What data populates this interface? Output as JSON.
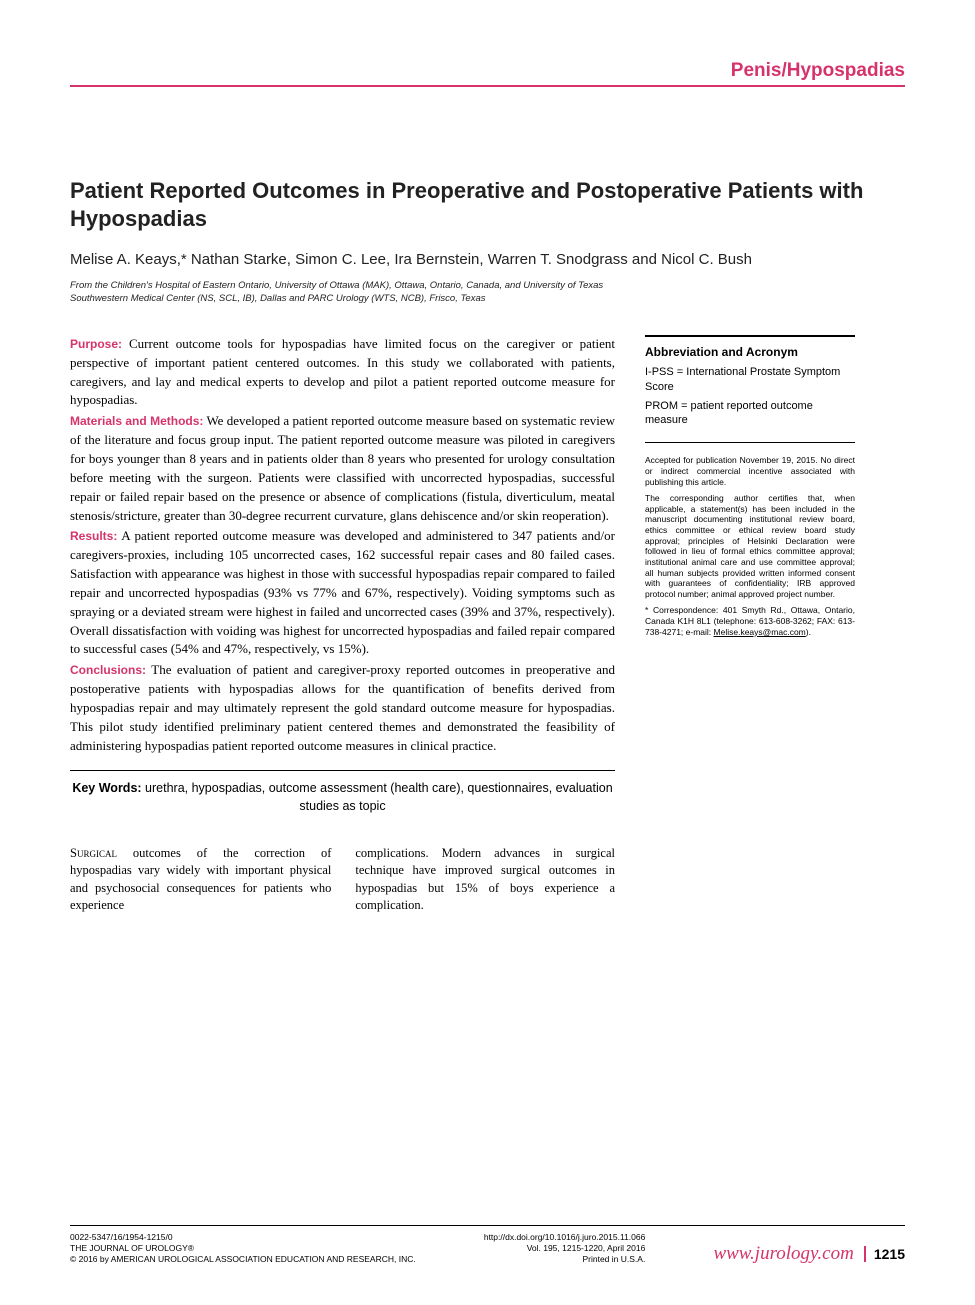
{
  "section_header": "Penis/Hypospadias",
  "title": "Patient Reported Outcomes in Preoperative and Postoperative Patients with Hypospadias",
  "authors": "Melise A. Keays,* Nathan Starke, Simon C. Lee, Ira Bernstein, Warren T. Snodgrass and Nicol C. Bush",
  "affiliation": "From the Children's Hospital of Eastern Ontario, University of Ottawa (MAK), Ottawa, Ontario, Canada, and University of Texas Southwestern Medical Center (NS, SCL, IB), Dallas and PARC Urology (WTS, NCB), Frisco, Texas",
  "abstract": {
    "purpose_label": "Purpose:",
    "purpose": " Current outcome tools for hypospadias have limited focus on the caregiver or patient perspective of important patient centered outcomes. In this study we collaborated with patients, caregivers, and lay and medical experts to develop and pilot a patient reported outcome measure for hypospadias.",
    "methods_label": "Materials and Methods:",
    "methods": " We developed a patient reported outcome measure based on systematic review of the literature and focus group input. The patient reported outcome measure was piloted in caregivers for boys younger than 8 years and in patients older than 8 years who presented for urology consultation before meeting with the surgeon. Patients were classified with uncorrected hypospadias, successful repair or failed repair based on the presence or absence of complications (fistula, diverticulum, meatal stenosis/stricture, greater than 30-degree recurrent curvature, glans dehiscence and/or skin reoperation).",
    "results_label": "Results:",
    "results": " A patient reported outcome measure was developed and administered to 347 patients and/or caregivers-proxies, including 105 uncorrected cases, 162 successful repair cases and 80 failed cases. Satisfaction with appearance was highest in those with successful hypospadias repair compared to failed repair and uncorrected hypospadias (93% vs 77% and 67%, respectively). Voiding symptoms such as spraying or a deviated stream were highest in failed and uncorrected cases (39% and 37%, respectively). Overall dissatisfaction with voiding was highest for uncorrected hypospadias and failed repair compared to successful cases (54% and 47%, respectively, vs 15%).",
    "conclusions_label": "Conclusions:",
    "conclusions": " The evaluation of patient and caregiver-proxy reported outcomes in preoperative and postoperative patients with hypospadias allows for the quantification of benefits derived from hypospadias repair and may ultimately represent the gold standard outcome measure for hypospadias. This pilot study identified preliminary patient centered themes and demonstrated the feasibility of administering hypospadias patient reported outcome measures in clinical practice."
  },
  "keywords_label": "Key Words:",
  "keywords": " urethra, hypospadias, outcome assessment (health care), questionnaires, evaluation studies as topic",
  "sidebar": {
    "abbrev_title": "Abbreviation and Acronym",
    "abbrev1": "I-PSS = International Prostate Symptom Score",
    "abbrev2": "PROM = patient reported outcome measure",
    "note1": "Accepted for publication November 19, 2015. No direct or indirect commercial incentive associated with publishing this article.",
    "note2": "The corresponding author certifies that, when applicable, a statement(s) has been included in the manuscript documenting institutional review board, ethics committee or ethical review board study approval; principles of Helsinki Declaration were followed in lieu of formal ethics committee approval; institutional animal care and use committee approval; all human subjects provided written informed consent with guarantees of confidentiality; IRB approved protocol number; animal approved project number.",
    "note3_prefix": "* Correspondence: 401 Smyth Rd., Ottawa, Ontario, Canada K1H 8L1 (telephone: 613-608-3262; FAX: 613-738-4271; e-mail: ",
    "note3_email": "Melise.keays@mac.com",
    "note3_suffix": ")."
  },
  "body": {
    "col1_lead": "Surgical",
    "col1": " outcomes of the correction of hypospadias vary widely with important physical and psychosocial consequences for patients who experience",
    "col2": "complications. Modern advances in surgical technique have improved surgical outcomes in hypospadias but 15% of boys experience a complication."
  },
  "footer": {
    "left1": "0022-5347/16/1954-1215/0",
    "left2": "THE JOURNAL OF UROLOGY®",
    "left3": "© 2016 by AMERICAN UROLOGICAL ASSOCIATION EDUCATION AND RESEARCH, INC.",
    "mid1": "http://dx.doi.org/10.1016/j.juro.2015.11.066",
    "mid2": "Vol. 195, 1215-1220, April 2016",
    "mid3": "Printed in U.S.A.",
    "url": "www.jurology.com",
    "pagenum": "1215"
  },
  "colors": {
    "accent": "#d6336c",
    "text": "#000000",
    "bg": "#ffffff"
  }
}
